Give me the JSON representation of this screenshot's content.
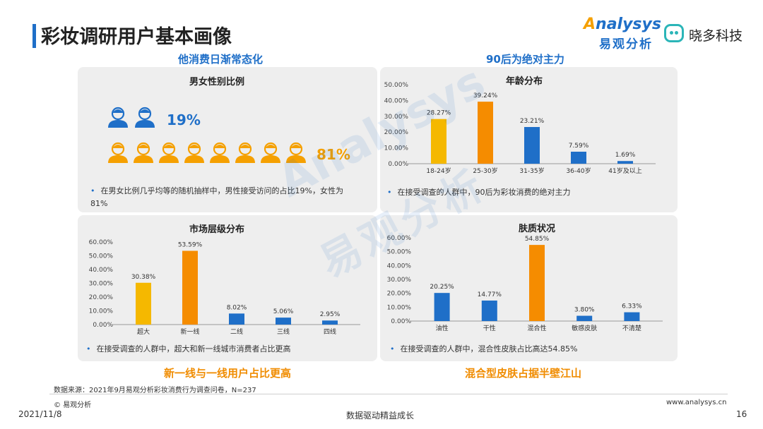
{
  "header": {
    "title": "彩妆调研用户基本画像",
    "logo_o": "A",
    "logo_main": "nalysys",
    "logo_sub": "易观分析",
    "brand2": "晓多科技"
  },
  "watermark": {
    "line1": "Analysys",
    "line2": "易观分析"
  },
  "sections": {
    "tl_heading": "他消费日渐常态化",
    "tr_heading": "90后为绝对主力",
    "bl_heading": "新一线与一线用户占比更高",
    "br_heading": "混合型皮肤占据半壁江山"
  },
  "gender_panel": {
    "title": "男女性别比例",
    "male_pct": "19%",
    "female_pct": "81%",
    "male_icons": 2,
    "female_icons": 8,
    "male_color": "#1f6fc8",
    "female_color": "#f5a000",
    "note": "在男女比例几乎均等的随机抽样中，男性接受访问的占比19%，女性为81%"
  },
  "age_panel": {
    "title": "年龄分布",
    "note": "在接受调查的人群中，90后为彩妆消费的绝对主力"
  },
  "market_panel": {
    "title": "市场层级分布",
    "note": "在接受调查的人群中，超大和新一线城市消费者占比更高"
  },
  "skin_panel": {
    "title": "肤质状况",
    "note": "在接受调查的人群中，混合性皮肤占比高达54.85%"
  },
  "chart_data": [
    {
      "type": "bar",
      "id": "age",
      "title": "年龄分布",
      "categories": [
        "18-24岁",
        "25-30岁",
        "31-35岁",
        "36-40岁",
        "41岁及以上"
      ],
      "values": [
        28.27,
        39.24,
        23.21,
        7.59,
        1.69
      ],
      "value_labels": [
        "28.27%",
        "39.24%",
        "23.21%",
        "7.59%",
        "1.69%"
      ],
      "colors": [
        "#f5b800",
        "#f58c00",
        "#1f6fc8",
        "#1f6fc8",
        "#1f6fc8"
      ],
      "yticks": [
        "0.00%",
        "10.00%",
        "20.00%",
        "30.00%",
        "40.00%",
        "50.00%"
      ],
      "ylim": [
        0,
        50
      ]
    },
    {
      "type": "bar",
      "id": "market",
      "title": "市场层级分布",
      "categories": [
        "超大",
        "新一线",
        "二线",
        "三线",
        "四线"
      ],
      "values": [
        30.38,
        53.59,
        8.02,
        5.06,
        2.95
      ],
      "value_labels": [
        "30.38%",
        "53.59%",
        "8.02%",
        "5.06%",
        "2.95%"
      ],
      "colors": [
        "#f5b800",
        "#f58c00",
        "#1f6fc8",
        "#1f6fc8",
        "#1f6fc8"
      ],
      "yticks": [
        "0.00%",
        "10.00%",
        "20.00%",
        "30.00%",
        "40.00%",
        "50.00%",
        "60.00%"
      ],
      "ylim": [
        0,
        60
      ]
    },
    {
      "type": "bar",
      "id": "skin",
      "title": "肤质状况",
      "categories": [
        "油性",
        "干性",
        "混合性",
        "敏感皮肤",
        "不清楚"
      ],
      "values": [
        20.25,
        14.77,
        54.85,
        3.8,
        6.33
      ],
      "value_labels": [
        "20.25%",
        "14.77%",
        "54.85%",
        "3.80%",
        "6.33%"
      ],
      "colors": [
        "#1f6fc8",
        "#1f6fc8",
        "#f58c00",
        "#1f6fc8",
        "#1f6fc8"
      ],
      "yticks": [
        "0.00%",
        "10.00%",
        "20.00%",
        "30.00%",
        "40.00%",
        "50.00%",
        "60.00%"
      ],
      "ylim": [
        0,
        60
      ]
    }
  ],
  "footer": {
    "source": "数据来源：2021年9月易观分析彩妆消费行为调查问卷，N=237",
    "copyright": "© 易观分析",
    "website": "www.analysys.cn",
    "date": "2021/11/8",
    "slogan": "数据驱动精益成长",
    "page": "16"
  }
}
